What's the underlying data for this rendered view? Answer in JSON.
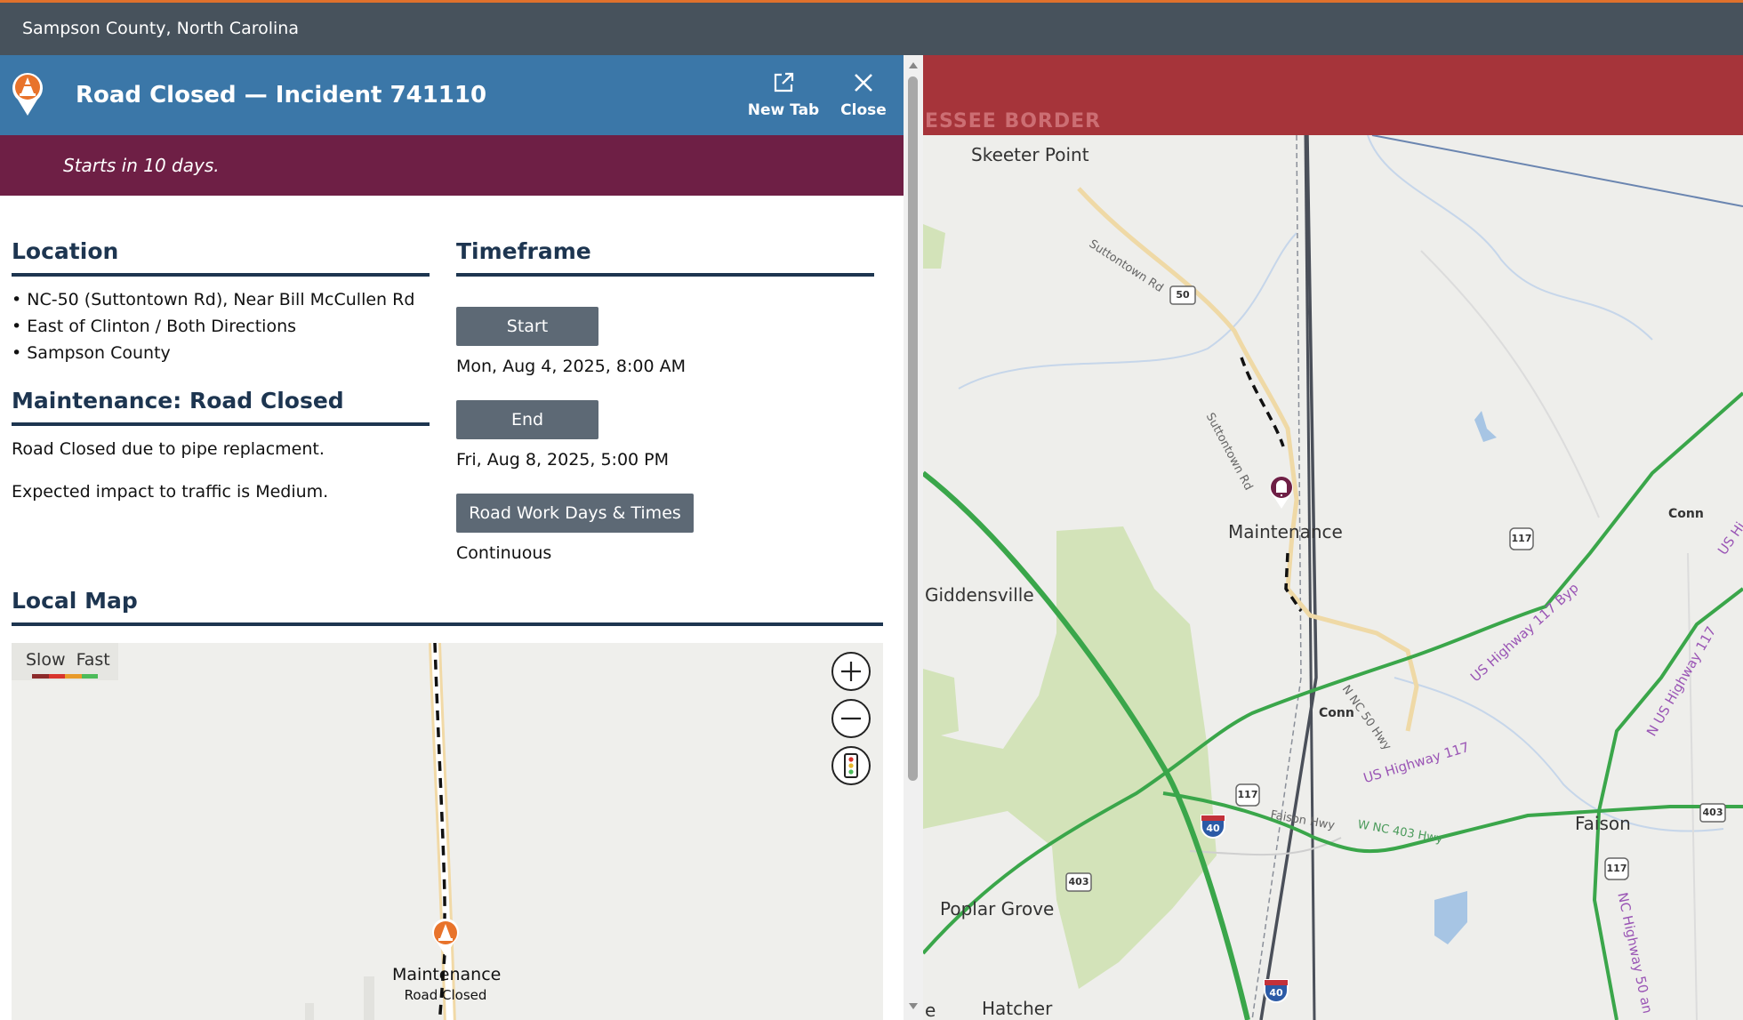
{
  "app": {
    "title": "Sampson County, North Carolina"
  },
  "header": {
    "title": "Road Closed — Incident 741110",
    "new_tab_label": "New Tab",
    "close_label": "Close"
  },
  "banner": {
    "text": "Starts in 10 days."
  },
  "location": {
    "heading": "Location",
    "lines": [
      "• NC-50 (Suttontown Rd), Near Bill McCullen Rd",
      "• East of Clinton / Both Directions",
      "• Sampson County"
    ]
  },
  "maintenance": {
    "heading": "Maintenance: Road Closed",
    "description": "Road Closed due to pipe replacment.",
    "impact": "Expected impact to traffic is Medium."
  },
  "timeframe": {
    "heading": "Timeframe",
    "start_label": "Start",
    "start_value": "Mon, Aug 4, 2025, 8:00 AM",
    "end_label": "End",
    "end_value": "Fri, Aug 8, 2025, 5:00 PM",
    "workdays_label": "Road Work Days & Times",
    "workdays_value": "Continuous"
  },
  "local_map": {
    "heading": "Local Map",
    "legend": "Slow  Fast",
    "legend_colors": [
      "#8c2a2a",
      "#d8342c",
      "#e89a2a",
      "#4cbb5a"
    ],
    "marker_title": "Maintenance",
    "marker_subtitle": "Road Closed"
  },
  "big_map": {
    "banner_text": "ESSEE BORDER",
    "places": {
      "skeeter_point": "Skeeter Point",
      "giddensville": "Giddensville",
      "poplar_grove": "Poplar Grove",
      "hatcher": "Hatcher",
      "faison": "Faison",
      "conn_1": "Conn",
      "conn_2": "Conn",
      "e_fragment": "e"
    },
    "marker_label": "Maintenance",
    "roads": {
      "suttontown_1": "Suttontown Rd",
      "suttontown_2": "Suttontown Rd",
      "nc50_hwy": "N NC 50 Hwy",
      "us117_byp": "US Highway 117 Byp",
      "us117": "US Highway 117",
      "n_us117": "N US Highway 117",
      "us_hi": "US Hi",
      "faison_hwy": "Faison Hwy",
      "w_nc403": "W NC 403 Hwy",
      "nc50_s": "NC Highway 50 an"
    },
    "shields": {
      "s50": "50",
      "s117a": "117",
      "s117b": "117",
      "s117c": "117",
      "s403a": "403",
      "s403b": "403",
      "i40a": "40",
      "i40b": "40"
    }
  }
}
